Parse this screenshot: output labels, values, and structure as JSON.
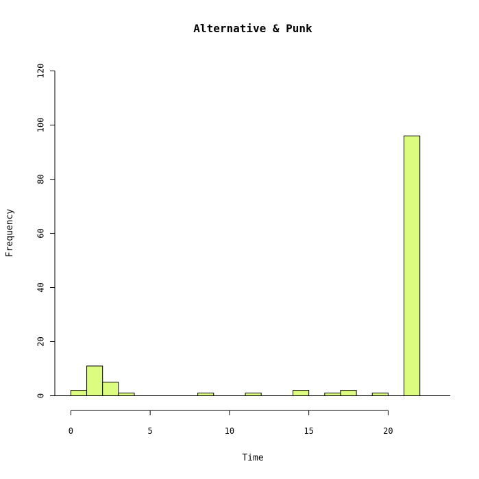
{
  "chart_data": {
    "type": "bar",
    "title": "Alternative & Punk",
    "xlabel": "Time",
    "ylabel": "Frequency",
    "bar_color": "#dcfc80",
    "xlim": [
      0,
      24
    ],
    "ylim": [
      0,
      120
    ],
    "x_ticks": [
      0,
      5,
      10,
      15,
      20
    ],
    "y_ticks": [
      0,
      20,
      40,
      60,
      80,
      100,
      120
    ],
    "bins": [
      {
        "x0": 0,
        "x1": 1,
        "count": 2
      },
      {
        "x0": 1,
        "x1": 2,
        "count": 11
      },
      {
        "x0": 2,
        "x1": 3,
        "count": 5
      },
      {
        "x0": 3,
        "x1": 4,
        "count": 1
      },
      {
        "x0": 8,
        "x1": 9,
        "count": 1
      },
      {
        "x0": 11,
        "x1": 12,
        "count": 1
      },
      {
        "x0": 14,
        "x1": 15,
        "count": 2
      },
      {
        "x0": 16,
        "x1": 17,
        "count": 1
      },
      {
        "x0": 17,
        "x1": 18,
        "count": 2
      },
      {
        "x0": 19,
        "x1": 20,
        "count": 1
      },
      {
        "x0": 21,
        "x1": 22,
        "count": 96
      }
    ]
  }
}
